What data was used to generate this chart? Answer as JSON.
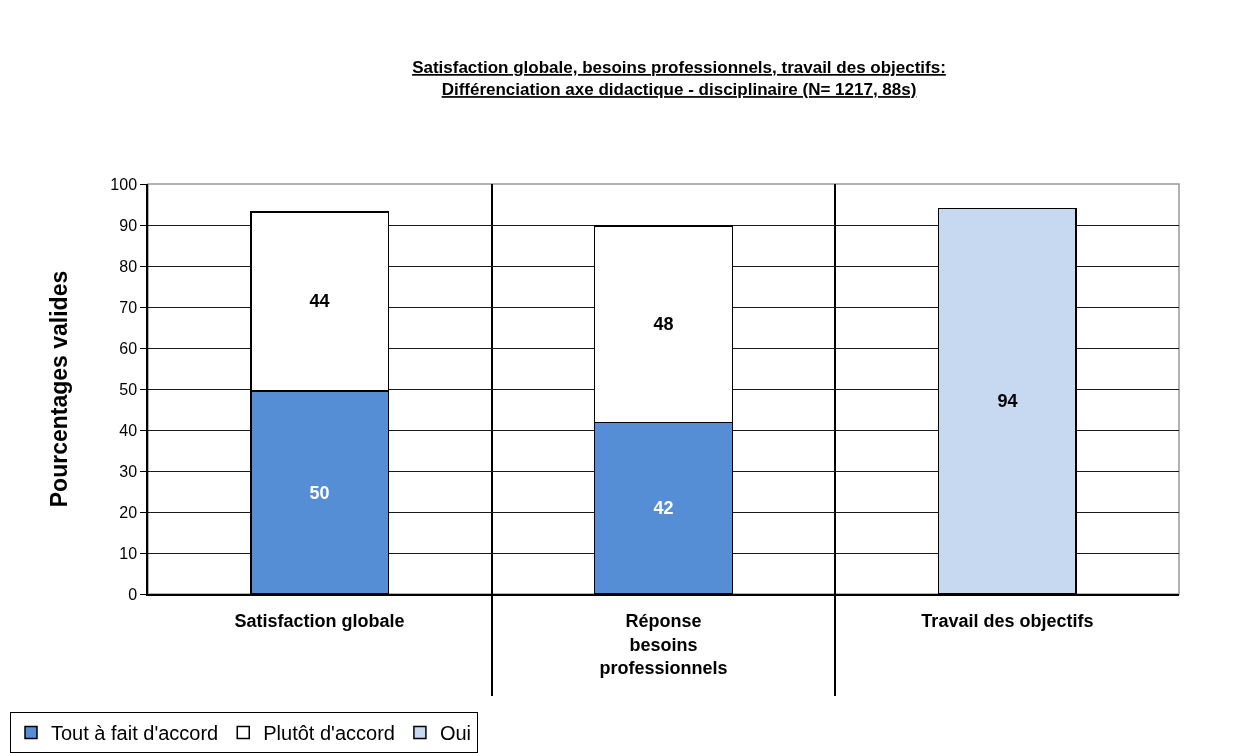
{
  "chart_data": {
    "type": "bar",
    "stacked": true,
    "title": "Satisfaction globale, besoins professionnels, travail des objectifs:\nDifférenciation axe didactique - disciplinaire (N= 1217, 88s)",
    "ylabel": "Pourcentages valides",
    "categories": [
      "Satisfaction globale",
      "Réponse\nbesoins\nprofessionnels",
      "Travail des objectifs"
    ],
    "series": [
      {
        "name": "Tout à fait d'accord",
        "color": "#558ed5",
        "values": [
          49.5,
          41.8,
          null
        ],
        "value_labels": [
          "50",
          "42",
          null
        ]
      },
      {
        "name": "Plutôt d'accord",
        "color": "#ffffff",
        "values": [
          43.7,
          48,
          null
        ],
        "value_labels": [
          "44",
          "48",
          null
        ]
      },
      {
        "name": "Oui",
        "color": "#c6d9f1",
        "values": [
          null,
          null,
          94
        ],
        "value_labels": [
          null,
          null,
          "94"
        ]
      }
    ],
    "ylim": [
      0,
      100
    ],
    "yticks": [
      0,
      10,
      20,
      30,
      40,
      50,
      60,
      70,
      80,
      90,
      100
    ],
    "grid": true,
    "legend": "bottom left"
  }
}
